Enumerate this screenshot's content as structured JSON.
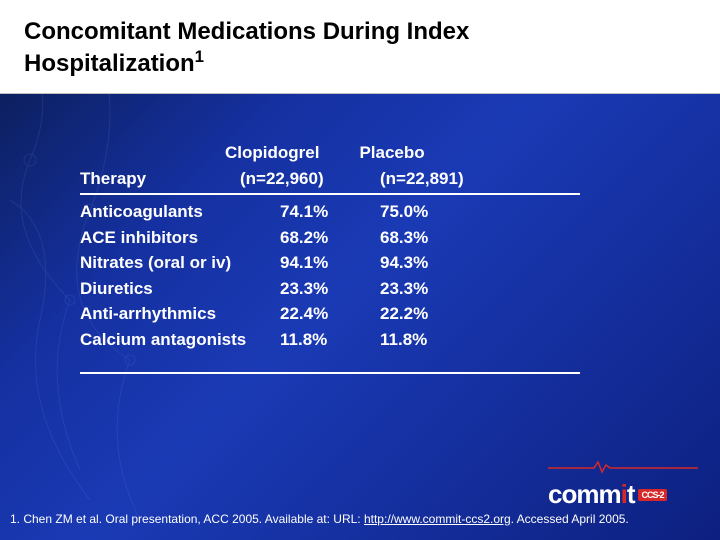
{
  "title": {
    "line1": "Concomitant Medications During Index",
    "line2": "Hospitalization",
    "sup": "1"
  },
  "table": {
    "group_header": {
      "col1": "Clopidogrel",
      "col2": "Placebo"
    },
    "n_header": {
      "label": "Therapy",
      "n1": "(n=22,960)",
      "n2": "(n=22,891)"
    },
    "rows": [
      {
        "therapy": "Anticoagulants",
        "v1": "74.1%",
        "v2": "75.0%"
      },
      {
        "therapy": "ACE inhibitors",
        "v1": "68.2%",
        "v2": "68.3%"
      },
      {
        "therapy": "Nitrates (oral or iv)",
        "v1": "94.1%",
        "v2": "94.3%"
      },
      {
        "therapy": "Diuretics",
        "v1": "23.3%",
        "v2": "23.3%"
      },
      {
        "therapy": "Anti-arrhythmics",
        "v1": "22.4%",
        "v2": "22.2%"
      },
      {
        "therapy": "Calcium antagonists",
        "v1": "11.8%",
        "v2": "11.8%"
      }
    ]
  },
  "citation": {
    "prefix": "1. Chen ZM et al. Oral presentation, ACC 2005. Available at: URL: ",
    "url_text": "http://www.commit-ccs2.org",
    "suffix": ".  Accessed April 2005."
  },
  "logo": {
    "pre": "comm",
    "i": "i",
    "post": "t",
    "badge": "CCS-2"
  },
  "colors": {
    "title_bg": "#ffffff",
    "title_text": "#000000",
    "body_text": "#ffffff",
    "accent_red": "#d62828",
    "bg_gradient_from": "#0a1a4a",
    "bg_gradient_to": "#0d2080"
  }
}
